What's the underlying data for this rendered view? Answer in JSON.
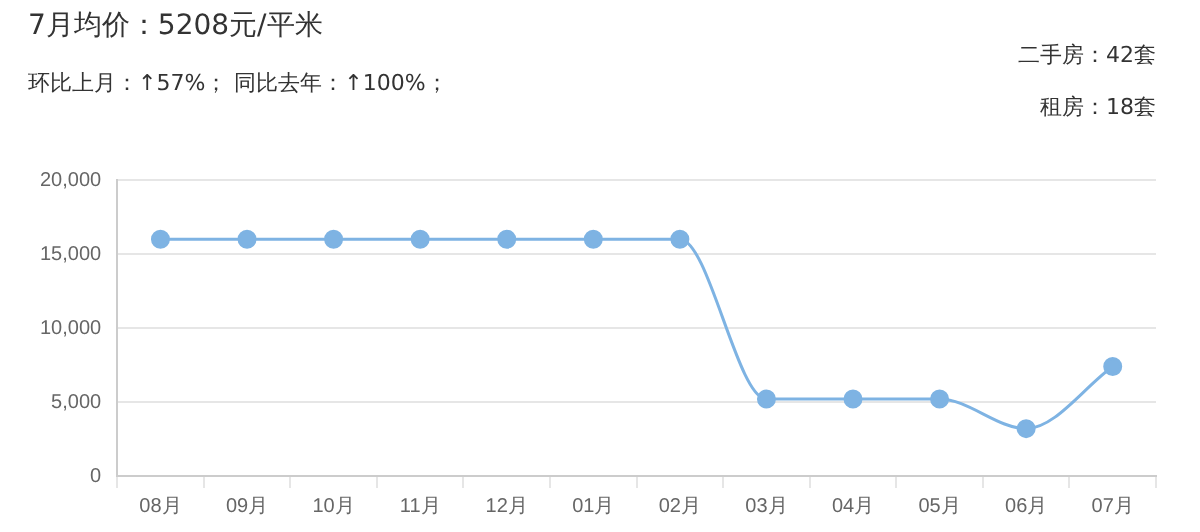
{
  "chart_data": {
    "type": "line",
    "title": "7月均价：5208元/平米",
    "subtitle": "环比上月：↑57%； 同比去年：↑100%；",
    "annotations": [
      "二手房：42套",
      "租房：18套"
    ],
    "categories": [
      "08月",
      "09月",
      "10月",
      "11月",
      "12月",
      "01月",
      "02月",
      "03月",
      "04月",
      "05月",
      "06月",
      "07月"
    ],
    "series": [
      {
        "color": "#7eb3e3",
        "values": [
          16000,
          16000,
          16000,
          16000,
          16000,
          16000,
          16000,
          5200,
          5200,
          5200,
          3200,
          7400
        ]
      }
    ],
    "ylim": [
      0,
      20000
    ],
    "yticks": [
      {
        "value": 0,
        "label": "0"
      },
      {
        "value": 5000,
        "label": "5,000"
      },
      {
        "value": 10000,
        "label": "10,000"
      },
      {
        "value": 15000,
        "label": "15,000"
      },
      {
        "value": 20000,
        "label": "20,000"
      }
    ],
    "grid": "y",
    "legend": false,
    "marker": "circle",
    "line_style": "solid"
  }
}
